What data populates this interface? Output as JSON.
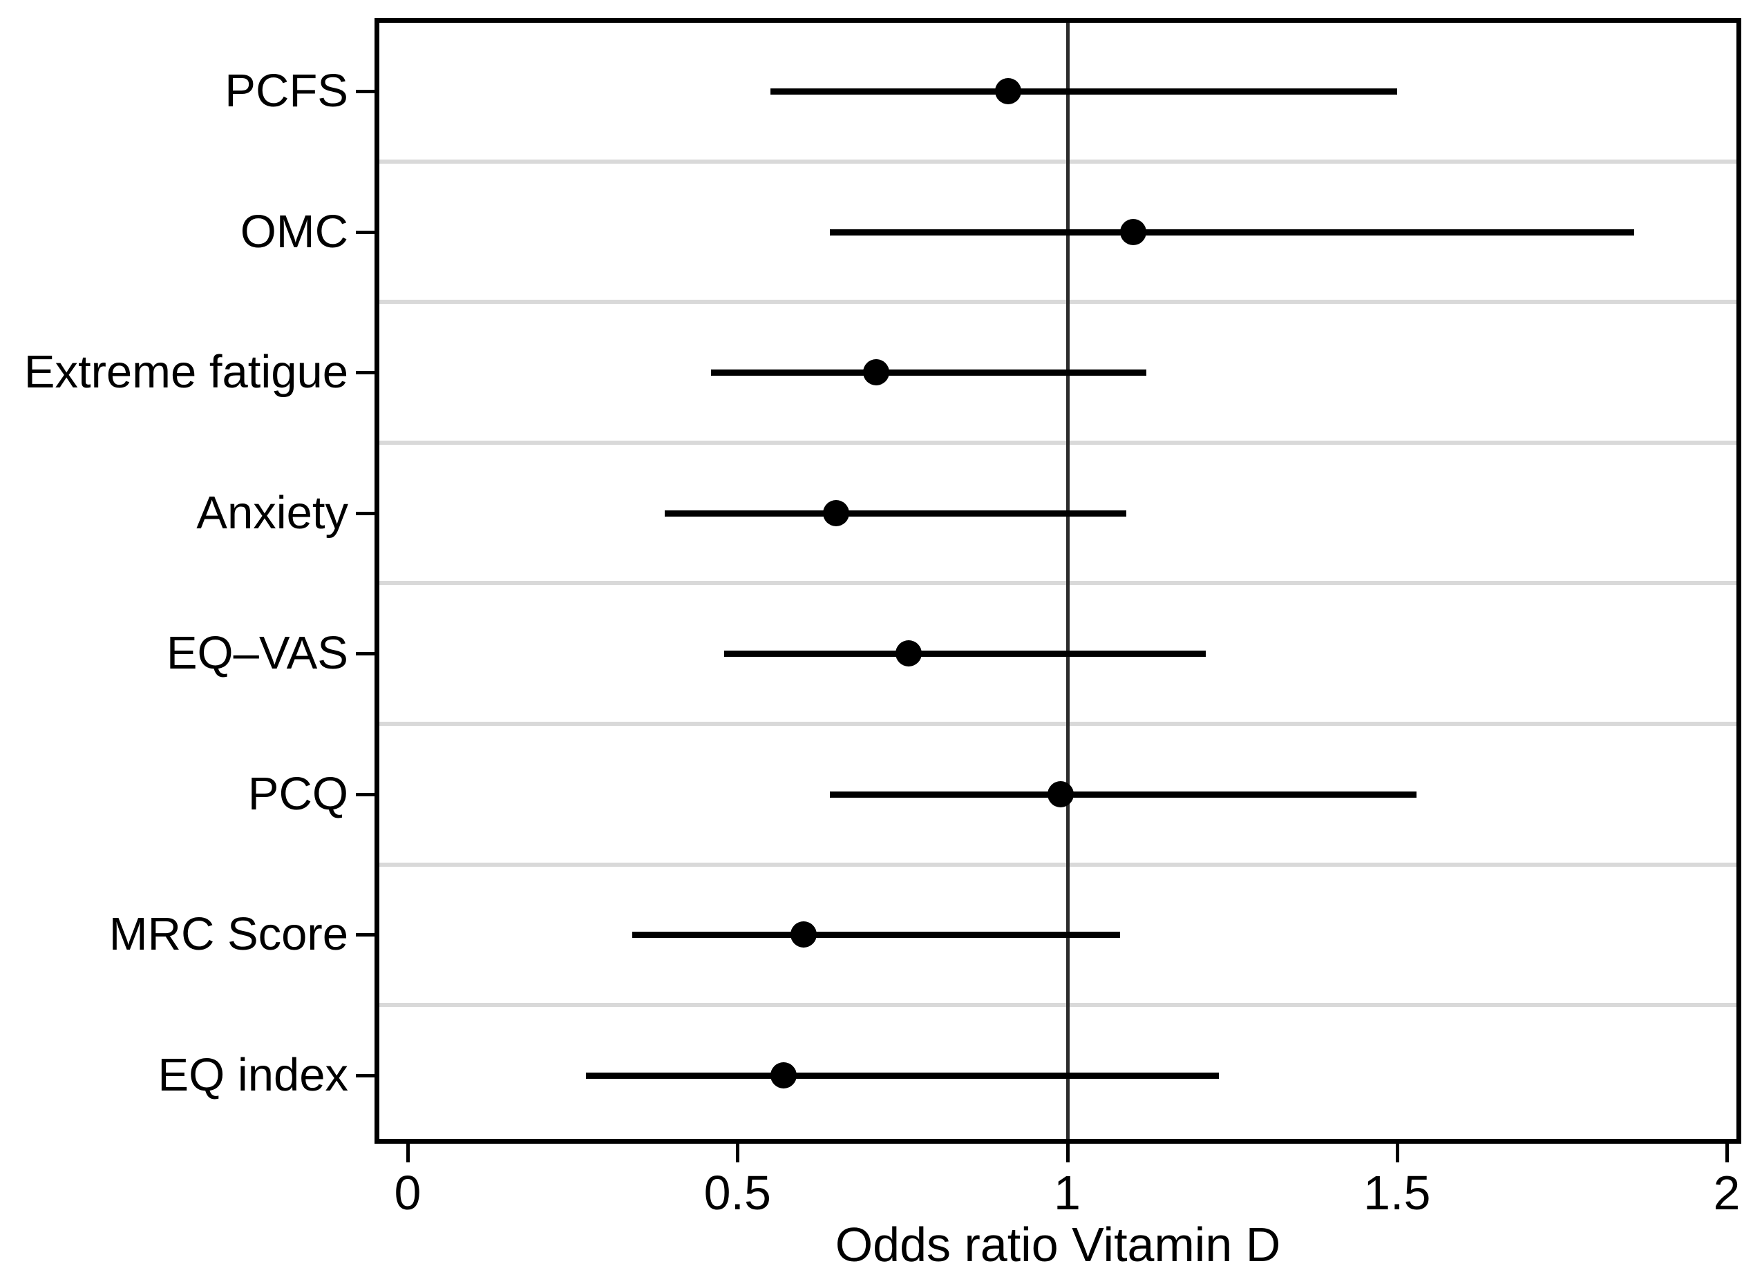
{
  "chart_data": {
    "type": "scatter",
    "variant": "forest-plot-odds-ratios-with-95ci",
    "title": "",
    "xlabel": "Odds ratio Vitamin D",
    "ylabel": "",
    "categories": [
      "PCFS",
      "OMC",
      "Extreme fatigue",
      "Anxiety",
      "EQ–VAS",
      "PCQ",
      "MRC Score",
      "EQ index"
    ],
    "odds_ratio": [
      0.91,
      1.1,
      0.71,
      0.65,
      0.76,
      0.99,
      0.6,
      0.57
    ],
    "ci_lower": [
      0.55,
      0.64,
      0.46,
      0.39,
      0.48,
      0.64,
      0.34,
      0.27
    ],
    "ci_upper": [
      1.5,
      1.86,
      1.12,
      1.09,
      1.21,
      1.53,
      1.08,
      1.23
    ],
    "xticks": [
      0,
      0.5,
      1,
      1.5,
      2
    ],
    "xtick_labels": [
      "0",
      "0.5",
      "1",
      "1.5",
      "2"
    ],
    "xlim": [
      -0.043,
      2.037
    ],
    "reference_line_x": 1,
    "grid": "horizontal-between-categories",
    "legend": "none",
    "colors": {
      "marker": "#000000",
      "ci_line": "#000000",
      "reference_line": "#2b2b2b",
      "gridline": "#d9d9d9",
      "axis_box": "#000000",
      "text": "#000000",
      "background": "#ffffff"
    }
  }
}
